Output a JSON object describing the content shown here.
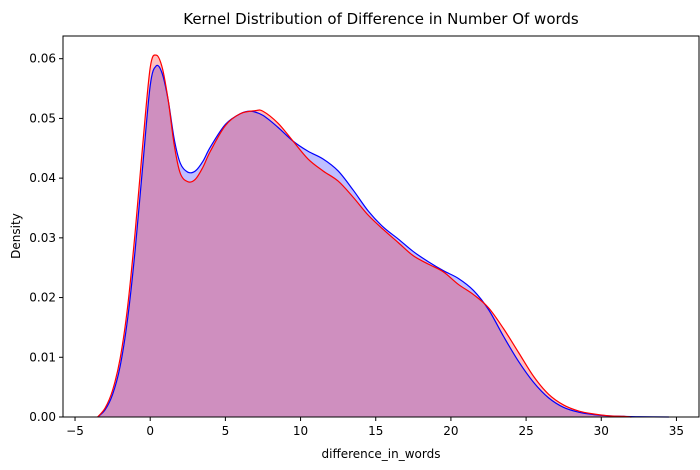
{
  "chart_data": {
    "type": "area",
    "title": "Kernel Distribution of Difference in Number Of words",
    "xlabel": "difference_in_words",
    "ylabel": "Density",
    "xlim": [
      -5.8,
      36.5
    ],
    "ylim": [
      0,
      0.0638
    ],
    "xticks": [
      -5,
      0,
      5,
      10,
      15,
      20,
      25,
      30,
      35
    ],
    "yticks": [
      0.0,
      0.01,
      0.02,
      0.03,
      0.04,
      0.05,
      0.06
    ],
    "grid": false,
    "legend": "none",
    "series": [
      {
        "color": "#0000ff",
        "fill_color": "#0000ff",
        "fill_opacity": 0.25,
        "points": [
          [
            -3.5,
            0.0
          ],
          [
            -3.0,
            0.0012
          ],
          [
            -2.5,
            0.0038
          ],
          [
            -2.0,
            0.0085
          ],
          [
            -1.5,
            0.0165
          ],
          [
            -1.0,
            0.028
          ],
          [
            -0.5,
            0.042
          ],
          [
            0.0,
            0.0555
          ],
          [
            0.4,
            0.0588
          ],
          [
            0.8,
            0.0575
          ],
          [
            1.2,
            0.053
          ],
          [
            1.6,
            0.0465
          ],
          [
            2.0,
            0.0425
          ],
          [
            2.5,
            0.041
          ],
          [
            3.0,
            0.0412
          ],
          [
            3.5,
            0.0428
          ],
          [
            4.0,
            0.0452
          ],
          [
            5.0,
            0.049
          ],
          [
            6.0,
            0.0508
          ],
          [
            6.7,
            0.0512
          ],
          [
            7.5,
            0.0505
          ],
          [
            8.5,
            0.0485
          ],
          [
            9.5,
            0.0462
          ],
          [
            10.5,
            0.0445
          ],
          [
            11.5,
            0.0432
          ],
          [
            12.5,
            0.0412
          ],
          [
            13.5,
            0.038
          ],
          [
            14.5,
            0.0345
          ],
          [
            15.5,
            0.0318
          ],
          [
            16.5,
            0.0298
          ],
          [
            17.5,
            0.0277
          ],
          [
            18.5,
            0.026
          ],
          [
            19.5,
            0.0245
          ],
          [
            20.5,
            0.0232
          ],
          [
            21.5,
            0.0212
          ],
          [
            22.5,
            0.018
          ],
          [
            23.5,
            0.0135
          ],
          [
            24.5,
            0.0093
          ],
          [
            25.5,
            0.0058
          ],
          [
            26.5,
            0.0032
          ],
          [
            27.5,
            0.0016
          ],
          [
            28.5,
            0.0008
          ],
          [
            29.5,
            0.0004
          ],
          [
            30.5,
            0.0002
          ],
          [
            31.5,
            0.0001
          ],
          [
            32.5,
            4e-05
          ],
          [
            34.5,
            0.0
          ]
        ]
      },
      {
        "color": "#ff0000",
        "fill_color": "#ff0000",
        "fill_opacity": 0.25,
        "points": [
          [
            -3.5,
            0.0
          ],
          [
            -3.0,
            0.0015
          ],
          [
            -2.5,
            0.0045
          ],
          [
            -2.0,
            0.0098
          ],
          [
            -1.5,
            0.0185
          ],
          [
            -1.0,
            0.031
          ],
          [
            -0.5,
            0.0455
          ],
          [
            0.0,
            0.0585
          ],
          [
            0.4,
            0.0606
          ],
          [
            0.8,
            0.0585
          ],
          [
            1.2,
            0.053
          ],
          [
            1.6,
            0.0455
          ],
          [
            2.0,
            0.0408
          ],
          [
            2.5,
            0.0394
          ],
          [
            3.0,
            0.0398
          ],
          [
            3.5,
            0.0418
          ],
          [
            4.0,
            0.0445
          ],
          [
            5.0,
            0.0488
          ],
          [
            6.0,
            0.0508
          ],
          [
            7.0,
            0.0513
          ],
          [
            7.5,
            0.0512
          ],
          [
            8.5,
            0.0492
          ],
          [
            9.5,
            0.0462
          ],
          [
            10.5,
            0.0432
          ],
          [
            11.5,
            0.0412
          ],
          [
            12.5,
            0.0395
          ],
          [
            13.5,
            0.0368
          ],
          [
            14.5,
            0.0338
          ],
          [
            15.5,
            0.0314
          ],
          [
            16.5,
            0.0292
          ],
          [
            17.5,
            0.027
          ],
          [
            18.5,
            0.0256
          ],
          [
            19.5,
            0.0243
          ],
          [
            20.5,
            0.0222
          ],
          [
            21.5,
            0.0205
          ],
          [
            22.5,
            0.0183
          ],
          [
            23.5,
            0.0148
          ],
          [
            24.5,
            0.0108
          ],
          [
            25.5,
            0.0068
          ],
          [
            26.5,
            0.0038
          ],
          [
            27.5,
            0.002
          ],
          [
            28.5,
            0.001
          ],
          [
            29.5,
            0.0005
          ],
          [
            30.5,
            0.0002
          ],
          [
            31.5,
            0.0001
          ],
          [
            32.0,
            0.0
          ]
        ]
      }
    ]
  }
}
